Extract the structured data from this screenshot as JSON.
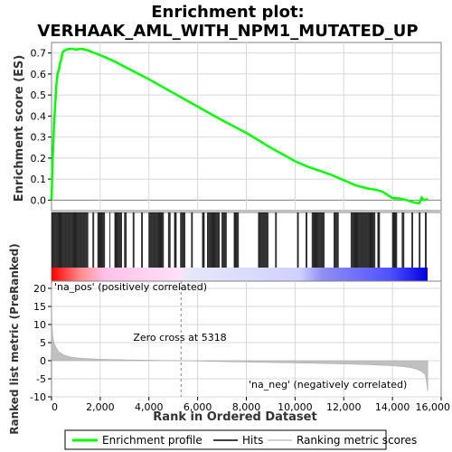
{
  "chart_data": {
    "type": "line",
    "title_line1": "Enrichment plot:",
    "title_line2": "VERHAAK_AML_WITH_NPM1_MUTATED_UP",
    "xlabel": "Rank in Ordered Dataset",
    "ylabel_top": "Enrichment score (ES)",
    "ylabel_bottom": "Ranked list metric (PreRanked)",
    "xlim": [
      0,
      16000
    ],
    "x_ticks": [
      0,
      2000,
      4000,
      6000,
      8000,
      10000,
      12000,
      14000,
      16000
    ],
    "x_tick_labels": [
      "0",
      "2,000",
      "4,000",
      "6,000",
      "8,000",
      "10,000",
      "12,000",
      "14,000",
      "16,000"
    ],
    "es_ylim": [
      -0.05,
      0.75
    ],
    "es_ticks": [
      0.0,
      0.1,
      0.2,
      0.3,
      0.4,
      0.5,
      0.6,
      0.7
    ],
    "es_tick_labels": [
      "0.0",
      "0.1",
      "0.2",
      "0.3",
      "0.4",
      "0.5",
      "0.6",
      "0.7"
    ],
    "metric_ylim": [
      -10,
      22
    ],
    "metric_ticks": [
      -10,
      -5,
      0,
      5,
      10,
      15,
      20
    ],
    "metric_tick_labels": [
      "-10",
      "-5",
      "0",
      "5",
      "10",
      "15",
      "20"
    ],
    "es_curve": {
      "x": [
        0,
        50,
        100,
        150,
        200,
        250,
        300,
        350,
        400,
        450,
        500,
        600,
        700,
        800,
        900,
        1000,
        1100,
        1200,
        1300,
        1500,
        2000,
        2500,
        3000,
        4000,
        5000,
        6000,
        7000,
        8000,
        9000,
        10000,
        10500,
        11000,
        11500,
        12000,
        12500,
        13000,
        13300,
        13600,
        14000,
        14300,
        14600,
        14900,
        15100,
        15200,
        15300,
        15450
      ],
      "y": [
        0.0,
        0.2,
        0.35,
        0.45,
        0.55,
        0.6,
        0.62,
        0.65,
        0.67,
        0.7,
        0.71,
        0.715,
        0.718,
        0.72,
        0.72,
        0.715,
        0.718,
        0.72,
        0.718,
        0.712,
        0.69,
        0.665,
        0.635,
        0.575,
        0.51,
        0.445,
        0.38,
        0.32,
        0.25,
        0.185,
        0.16,
        0.14,
        0.12,
        0.095,
        0.07,
        0.055,
        0.05,
        0.04,
        0.01,
        0.008,
        0.0,
        -0.012,
        -0.015,
        0.012,
        0.0,
        0.005
      ]
    },
    "hits_segments": [
      [
        20,
        1500
      ],
      [
        1700,
        1750
      ],
      [
        1900,
        2200
      ],
      [
        2400,
        2420
      ],
      [
        2600,
        2900
      ],
      [
        3000,
        3100
      ],
      [
        3350,
        3400
      ],
      [
        3700,
        3750
      ],
      [
        4000,
        4600
      ],
      [
        4800,
        4900
      ],
      [
        5050,
        5150
      ],
      [
        5300,
        5500
      ],
      [
        5750,
        5800
      ],
      [
        6200,
        6300
      ],
      [
        6400,
        6900
      ],
      [
        7000,
        7200
      ],
      [
        7500,
        7700
      ],
      [
        8500,
        8900
      ],
      [
        9200,
        9250
      ],
      [
        10100,
        10150
      ],
      [
        10450,
        10500
      ],
      [
        10700,
        11200
      ],
      [
        11600,
        11800
      ],
      [
        12300,
        13300
      ],
      [
        13400,
        13500
      ],
      [
        14000,
        14200
      ],
      [
        14400,
        14500
      ],
      [
        14800,
        14850
      ],
      [
        15100,
        15150
      ],
      [
        15350,
        15400
      ]
    ],
    "metric_curve": {
      "x": [
        0,
        20,
        50,
        100,
        200,
        300,
        500,
        800,
        1200,
        2000,
        3000,
        4000,
        5318,
        7000,
        9000,
        11000,
        12000,
        13000,
        14000,
        14500,
        14800,
        15000,
        15200,
        15350,
        15400,
        15450
      ],
      "y": [
        21,
        11,
        7,
        5,
        3.5,
        2.5,
        1.6,
        1.0,
        0.7,
        0.4,
        0.25,
        0.15,
        0.0,
        -0.25,
        -0.5,
        -0.75,
        -0.9,
        -1.1,
        -1.4,
        -1.7,
        -2.0,
        -2.4,
        -3.0,
        -4.0,
        -6.0,
        -8.5
      ]
    },
    "zero_cross_x": 5318,
    "zero_cross_label": "Zero cross at 5318",
    "na_pos_label": "'na_pos' (positively correlated)",
    "na_neg_label": "'na_neg' (negatively correlated)",
    "colors": {
      "es": "#00ff00",
      "hits": "#000000",
      "metric_fill": "#c0c0c0",
      "pos_text": "#ff0000",
      "neg_text": "#0000ff",
      "grid": "#d8d8d8",
      "zero_line": "#808080"
    },
    "legend": {
      "placement": "bottom",
      "items": [
        {
          "label": "Enrichment profile",
          "color": "#00ff00"
        },
        {
          "label": "Hits",
          "color": "#000000"
        },
        {
          "label": "Ranking metric scores",
          "color": "#c0c0c0"
        }
      ]
    }
  }
}
